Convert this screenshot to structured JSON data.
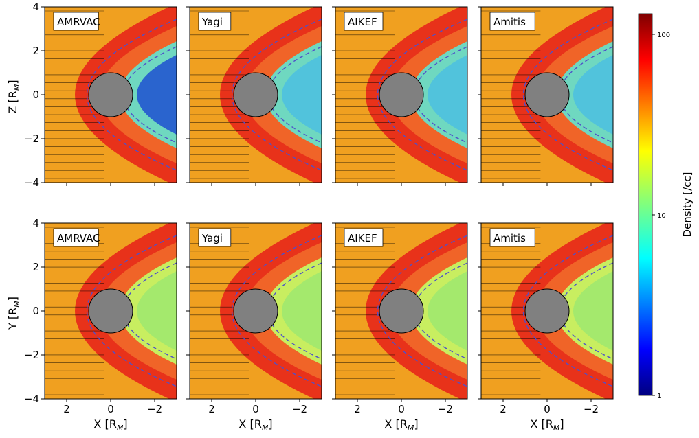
{
  "chart_data": {
    "type": "heatmap",
    "rows": [
      {
        "ylabel": "Z [R_M]",
        "ylabel_base": "Z [R",
        "ylabel_sub": "M",
        "ylabel_end": "]"
      },
      {
        "ylabel": "Y [R_M]",
        "ylabel_base": "Y [R",
        "ylabel_sub": "M",
        "ylabel_end": "]"
      }
    ],
    "panels": [
      "AMRVAC",
      "Yagi",
      "AIKEF",
      "Amitis"
    ],
    "xlabel": "X [R_M]",
    "xlabel_base": "X [R",
    "xlabel_sub": "M",
    "xlabel_end": "]",
    "xlim": [
      3,
      -3
    ],
    "ylim": [
      -4,
      4
    ],
    "xticks": [
      "2",
      "0",
      "−2"
    ],
    "yticks": [
      "4",
      "2",
      "0",
      "−2",
      "−4"
    ],
    "xtick_values": [
      2,
      0,
      -2
    ],
    "ytick_values": [
      4,
      2,
      0,
      -2,
      -4
    ],
    "planet_radius": 1,
    "colorbar": {
      "label": "Density [/cc]",
      "scale": "log",
      "range": [
        1,
        130
      ],
      "ticks": [
        "100",
        "10",
        "1"
      ],
      "tick_values": [
        100,
        10,
        1
      ],
      "colormap": "jet"
    },
    "colors": {
      "planet": "#808080",
      "boundary": "#5050c8",
      "streamline": "#000000"
    }
  }
}
